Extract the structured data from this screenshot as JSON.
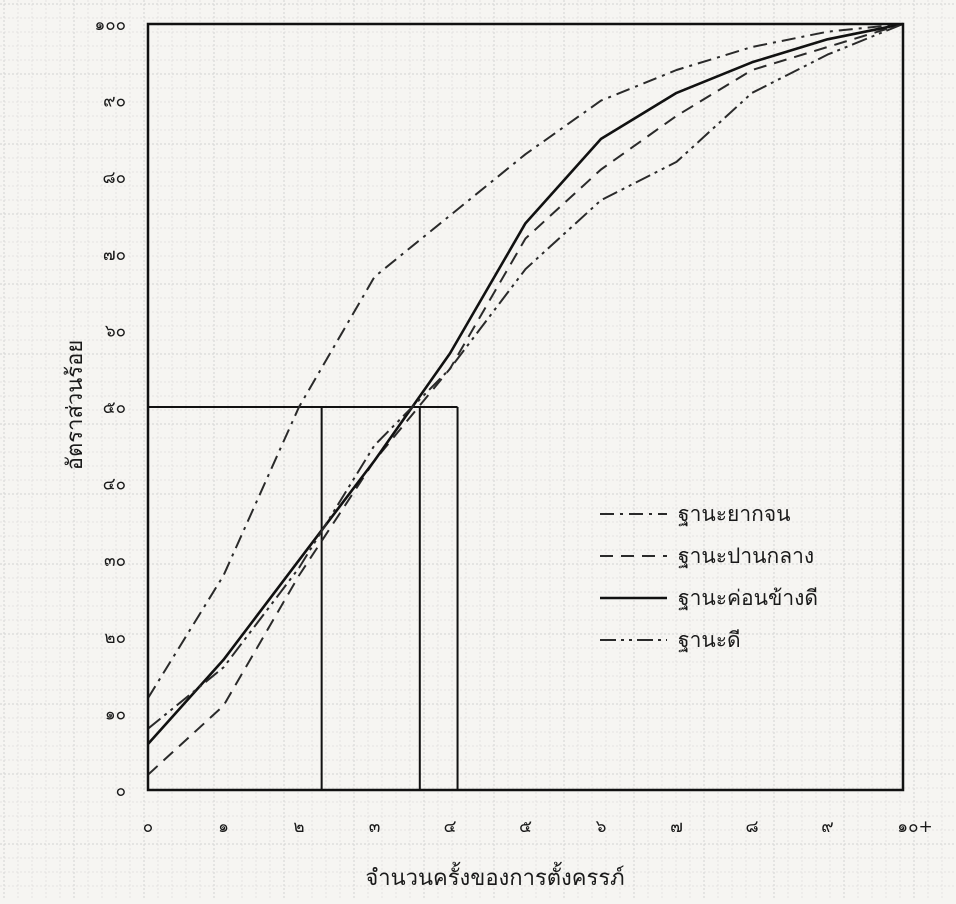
{
  "chart_data": {
    "type": "line",
    "title": "",
    "xlabel": "จำนวนครั้งของการตั้งครรภ์",
    "ylabel": "อัตราส่วนร้อย",
    "x": [
      0,
      1,
      2,
      3,
      4,
      5,
      6,
      7,
      8,
      9,
      10
    ],
    "x_tick_labels": [
      "๐",
      "๑",
      "๒",
      "๓",
      "๔",
      "๕",
      "๖",
      "๗",
      "๘",
      "๙",
      "๑๐+"
    ],
    "y_ticks": [
      0,
      10,
      20,
      30,
      40,
      50,
      60,
      70,
      80,
      90,
      100
    ],
    "y_tick_labels": [
      "๐",
      "๑๐",
      "๒๐",
      "๓๐",
      "๔๐",
      "๕๐",
      "๖๐",
      "๗๐",
      "๘๐",
      "๙๐",
      "๑๐๐"
    ],
    "xlim": [
      0,
      10
    ],
    "ylim": [
      0,
      100
    ],
    "grid": true,
    "legend_position": "lower-right",
    "series": [
      {
        "name": "ฐานะยากจน",
        "style": "dash-dot",
        "color": "#2a2a2a",
        "values": [
          12,
          28,
          50,
          67,
          75,
          83,
          90,
          94,
          97,
          99,
          100
        ]
      },
      {
        "name": "ฐานะปานกลาง",
        "style": "dashed",
        "color": "#2a2a2a",
        "values": [
          2,
          11,
          28,
          43,
          55,
          72,
          81,
          88,
          94,
          97,
          100
        ]
      },
      {
        "name": "ฐานะค่อนข้างดี",
        "style": "solid",
        "color": "#111111",
        "values": [
          6,
          17,
          30,
          43,
          57,
          74,
          85,
          91,
          95,
          98,
          100
        ]
      },
      {
        "name": "ฐานะดี",
        "style": "dash-dot-dot",
        "color": "#2a2a2a",
        "values": [
          8,
          16,
          29,
          45,
          55,
          68,
          77,
          82,
          91,
          96,
          100
        ]
      }
    ],
    "reference_lines": {
      "y": 50,
      "x_intercepts": [
        2.3,
        3.6,
        4.1
      ]
    }
  }
}
